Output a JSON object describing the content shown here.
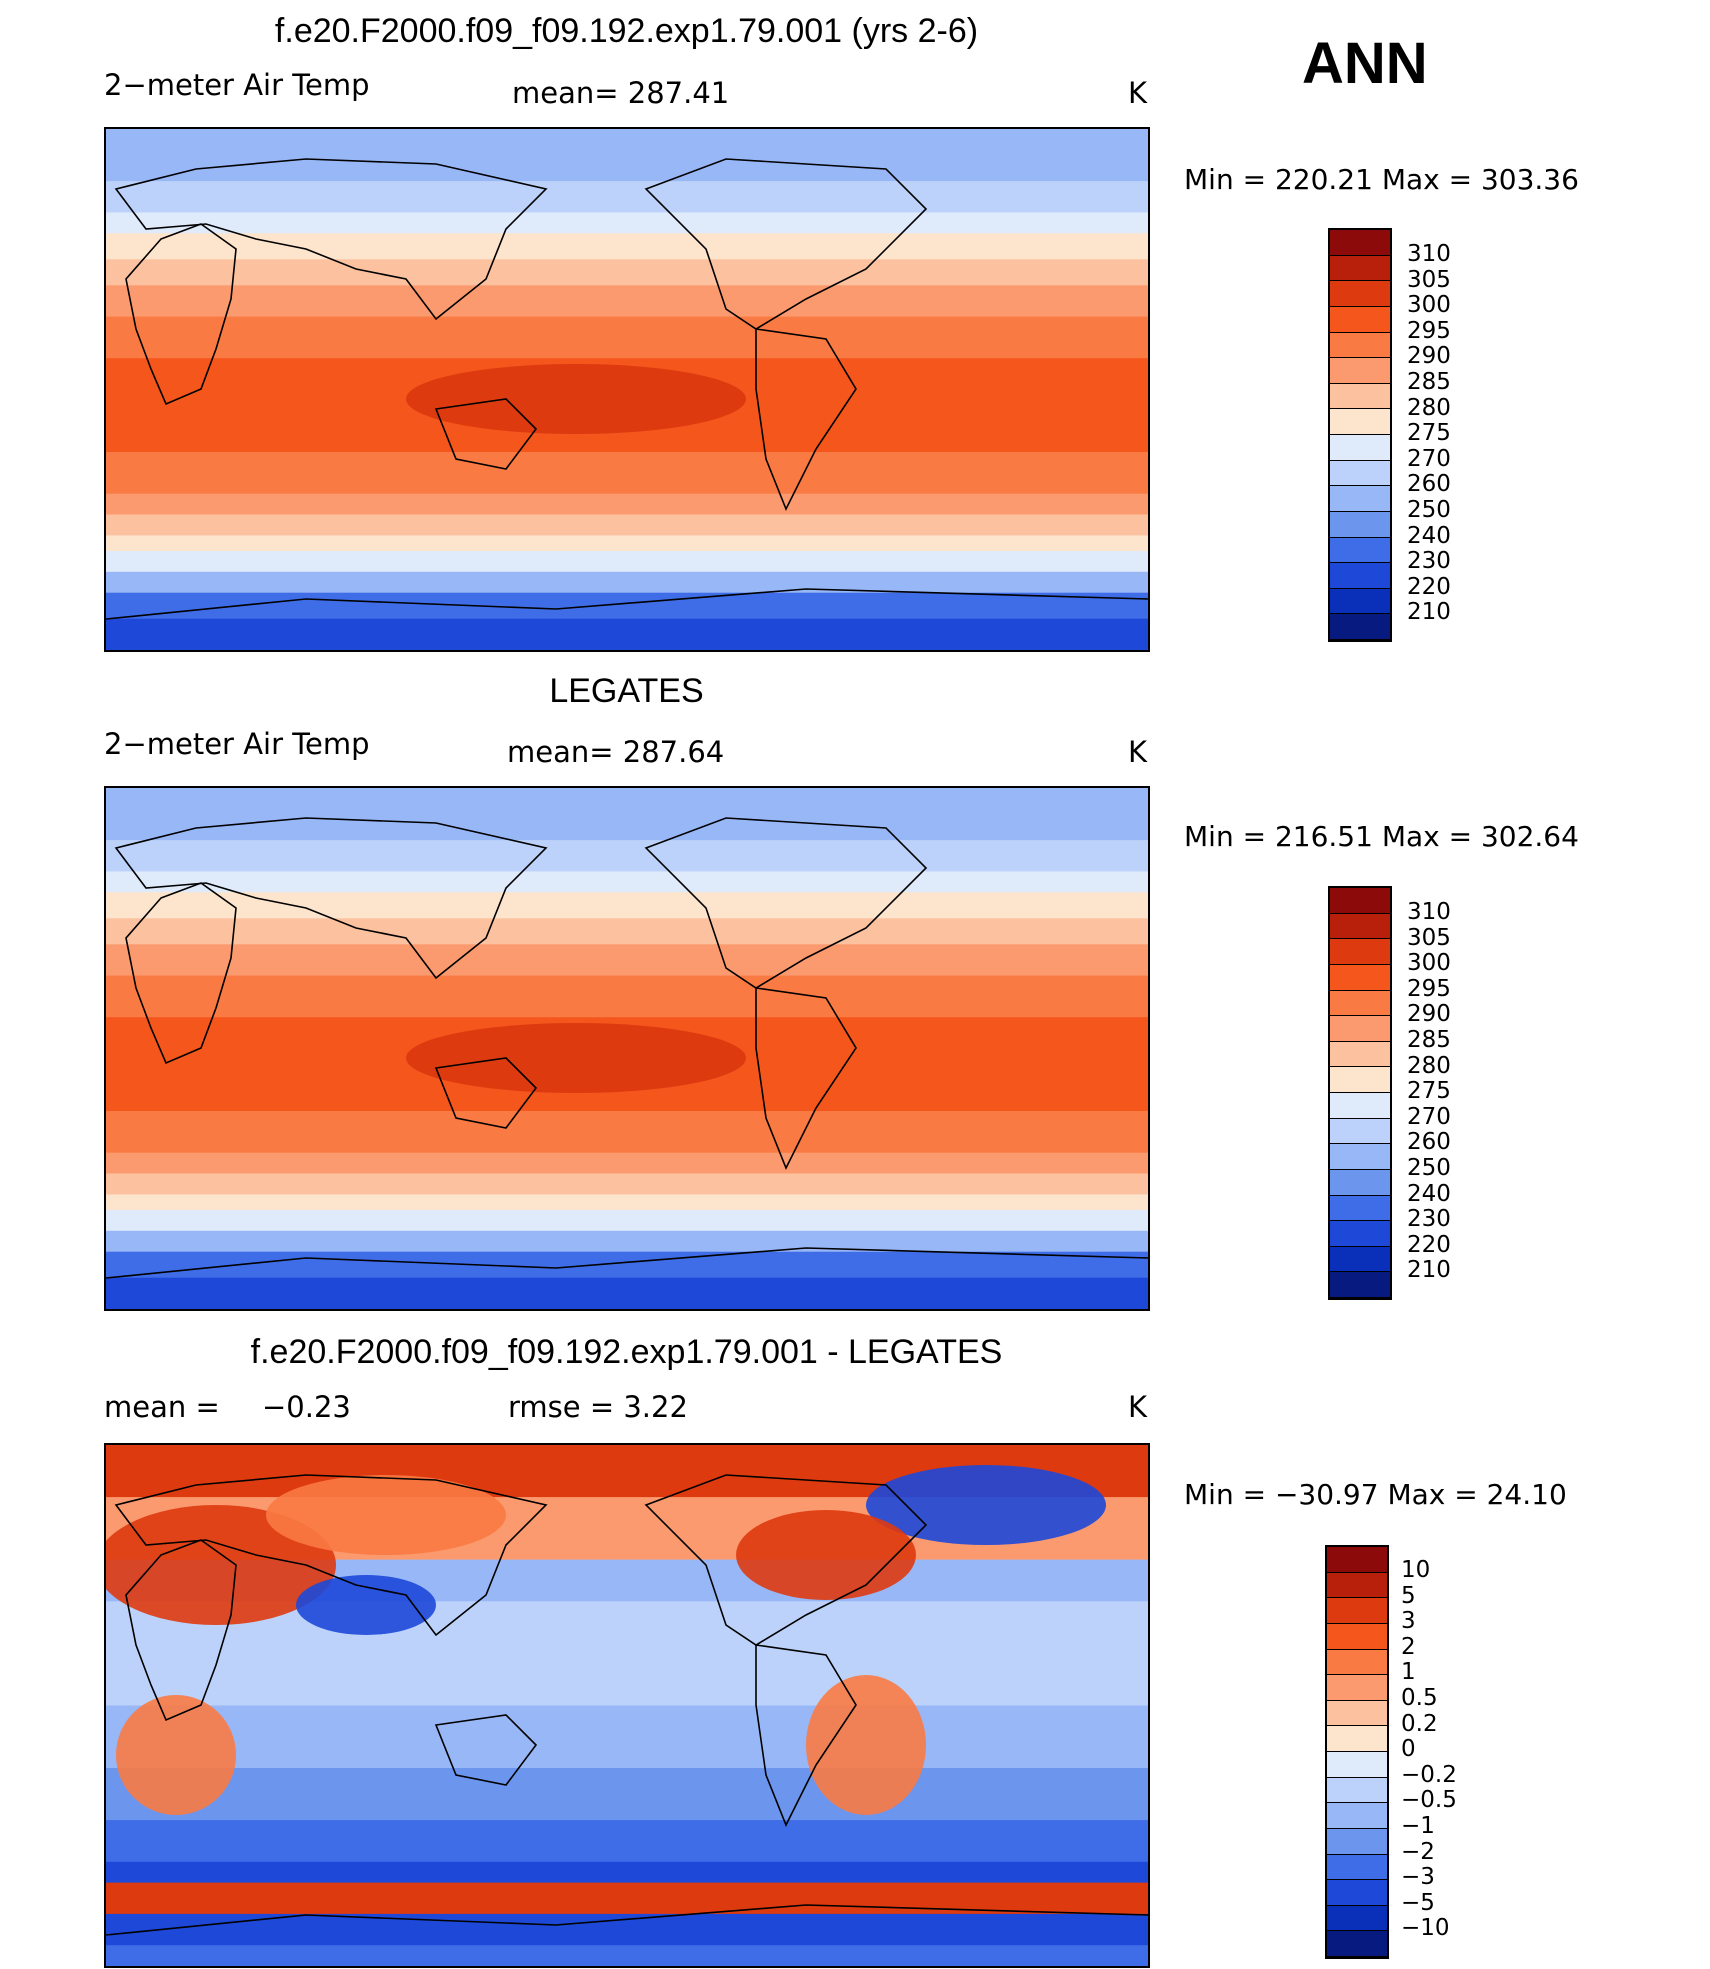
{
  "header": {
    "season": "ANN"
  },
  "panels": [
    {
      "title": "f.e20.F2000.f09_f09.192.exp1.79.001 (yrs 2-6)",
      "variable": "2−meter Air Temp",
      "stat1": "mean=  287.41",
      "stat2": "",
      "units": "K",
      "minmax": "Min  =  220.21  Max  =  303.36",
      "map_type": "model"
    },
    {
      "title": "LEGATES",
      "variable": "2−meter Air Temp",
      "stat1": "mean=  287.64",
      "stat2": "",
      "units": "K",
      "minmax": "Min  =  216.51  Max  =  302.64",
      "map_type": "obs"
    },
    {
      "title": "f.e20.F2000.f09_f09.192.exp1.79.001 - LEGATES",
      "variable": "mean  =",
      "stat1": "−0.23",
      "stat2": "rmse  =      3.22",
      "units": "K",
      "minmax": "Min  =  −30.97  Max  =    24.10",
      "map_type": "diff"
    }
  ],
  "colorbars": {
    "temperature": {
      "labels": [
        "310",
        "305",
        "300",
        "295",
        "290",
        "285",
        "280",
        "275",
        "270",
        "260",
        "250",
        "240",
        "230",
        "220",
        "210"
      ],
      "colors": [
        "#8c0a0a",
        "#b8200c",
        "#de3a10",
        "#f4561c",
        "#fa7a44",
        "#fb9a6e",
        "#fcc2a0",
        "#fde4cc",
        "#dfeafb",
        "#bcd2fa",
        "#98b7f7",
        "#6c95ee",
        "#3f6de8",
        "#1d48d8",
        "#0a2fb8",
        "#061a80"
      ]
    },
    "difference": {
      "labels": [
        "10",
        "5",
        "3",
        "2",
        "1",
        "0.5",
        "0.2",
        "0",
        "−0.2",
        "−0.5",
        "−1",
        "−2",
        "−3",
        "−5",
        "−10"
      ],
      "colors": [
        "#8c0a0a",
        "#b8200c",
        "#de3a10",
        "#f4561c",
        "#fa7a44",
        "#fb9a6e",
        "#fcc2a0",
        "#fde4cc",
        "#dfeafb",
        "#bcd2fa",
        "#98b7f7",
        "#6c95ee",
        "#3f6de8",
        "#1d48d8",
        "#0a2fb8",
        "#061a80"
      ]
    }
  }
}
